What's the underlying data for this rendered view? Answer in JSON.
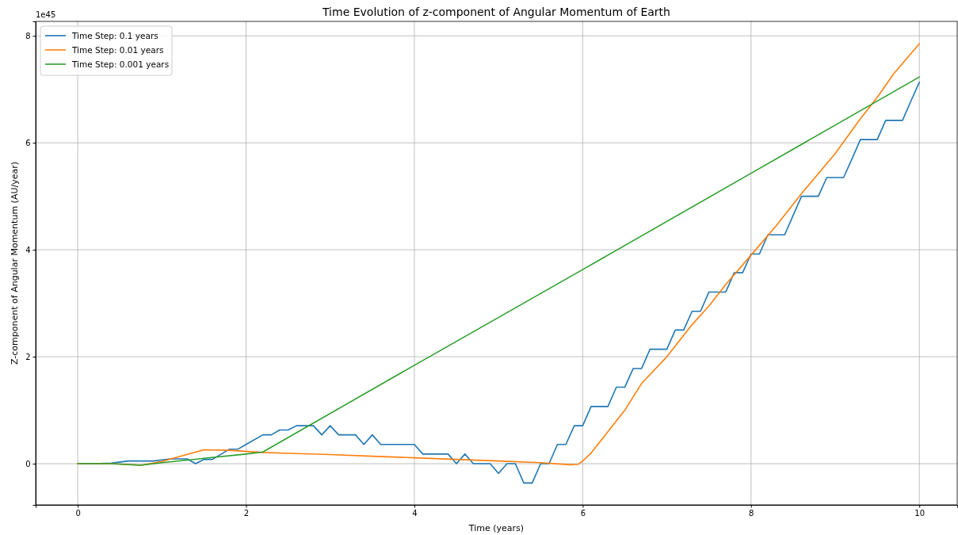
{
  "chart_data": {
    "type": "line",
    "title": "Time Evolution of z-component of Angular Momentum of Earth",
    "xlabel": "Time (years)",
    "ylabel": "Z-component of Angular Momentum (AU/year)",
    "annotations": [
      "1e45"
    ],
    "xlim": [
      -0.5,
      10.45
    ],
    "xticks": [
      0,
      2,
      4,
      6,
      8,
      10
    ],
    "ylim": [
      -0.77,
      8.27
    ],
    "yticks": [
      0,
      2,
      4,
      6,
      8
    ],
    "grid": true,
    "legend": "top left",
    "line_style": "solid",
    "marker": "none",
    "series": [
      {
        "name": "Time Step: 0.1 years",
        "color": "#1f77b4",
        "x": [
          0,
          0.2,
          0.4,
          0.6,
          0.9,
          1.1,
          1.3,
          1.4,
          1.5,
          1.6,
          1.8,
          1.9,
          2.0,
          2.2,
          2.3,
          2.4,
          2.5,
          2.6,
          2.7,
          2.8,
          2.9,
          3.0,
          3.1,
          3.2,
          3.3,
          3.4,
          3.5,
          3.6,
          4.0,
          4.1,
          4.4,
          4.5,
          4.6,
          4.7,
          4.9,
          5.0,
          5.1,
          5.2,
          5.3,
          5.4,
          5.5,
          5.6,
          5.7,
          5.8,
          5.9,
          6.0,
          6.1,
          6.3,
          6.4,
          6.5,
          6.6,
          6.7,
          6.8,
          7.0,
          7.1,
          7.2,
          7.3,
          7.4,
          7.5,
          7.7,
          7.8,
          7.9,
          8.0,
          8.1,
          8.2,
          8.4,
          8.5,
          8.6,
          8.8,
          8.9,
          9.1,
          9.2,
          9.3,
          9.5,
          9.6,
          9.8,
          9.9,
          10.0
        ],
        "values": [
          0,
          0,
          0.01,
          0.05,
          0.05,
          0.09,
          0.09,
          0,
          0.08,
          0.08,
          0.27,
          0.27,
          0.36,
          0.54,
          0.54,
          0.63,
          0.63,
          0.71,
          0.71,
          0.71,
          0.54,
          0.71,
          0.54,
          0.54,
          0.54,
          0.36,
          0.54,
          0.36,
          0.36,
          0.18,
          0.18,
          0,
          0.18,
          0,
          0,
          -0.18,
          0,
          0,
          -0.36,
          -0.36,
          0,
          0,
          0.36,
          0.36,
          0.71,
          0.71,
          1.07,
          1.07,
          1.43,
          1.43,
          1.78,
          1.78,
          2.14,
          2.14,
          2.5,
          2.5,
          2.85,
          2.85,
          3.21,
          3.21,
          3.57,
          3.57,
          3.92,
          3.92,
          4.28,
          4.28,
          4.64,
          5.0,
          5.0,
          5.35,
          5.35,
          5.7,
          6.06,
          6.06,
          6.42,
          6.42,
          6.78,
          7.13
        ]
      },
      {
        "name": "Time Step: 0.01 years",
        "color": "#ff7f0e",
        "x": [
          0,
          0.4,
          0.75,
          1.0,
          1.2,
          1.5,
          1.8,
          2.2,
          2.6,
          3.0,
          3.5,
          4.0,
          4.5,
          5.0,
          5.5,
          5.85,
          5.95,
          6.0,
          6.1,
          6.3,
          6.5,
          6.7,
          7.0,
          7.3,
          7.5,
          7.7,
          8.0,
          8.3,
          8.6,
          9.0,
          9.3,
          9.5,
          9.7,
          10.0
        ],
        "values": [
          0,
          0,
          -0.03,
          0.04,
          0.13,
          0.26,
          0.25,
          0.21,
          0.19,
          0.17,
          0.14,
          0.11,
          0.08,
          0.05,
          0.02,
          -0.02,
          -0.01,
          0.05,
          0.2,
          0.6,
          1.0,
          1.5,
          2.0,
          2.6,
          2.95,
          3.35,
          3.9,
          4.45,
          5.05,
          5.8,
          6.45,
          6.85,
          7.3,
          7.85
        ]
      },
      {
        "name": "Time Step: 0.001 years",
        "color": "#2ca02c",
        "x": [
          0,
          0.4,
          0.75,
          1.0,
          1.5,
          2.0,
          2.2,
          4.0,
          6.0,
          8.0,
          10.0
        ],
        "values": [
          0,
          0,
          -0.03,
          0.02,
          0.1,
          0.18,
          0.22,
          1.84,
          3.63,
          5.43,
          7.23
        ]
      }
    ]
  }
}
